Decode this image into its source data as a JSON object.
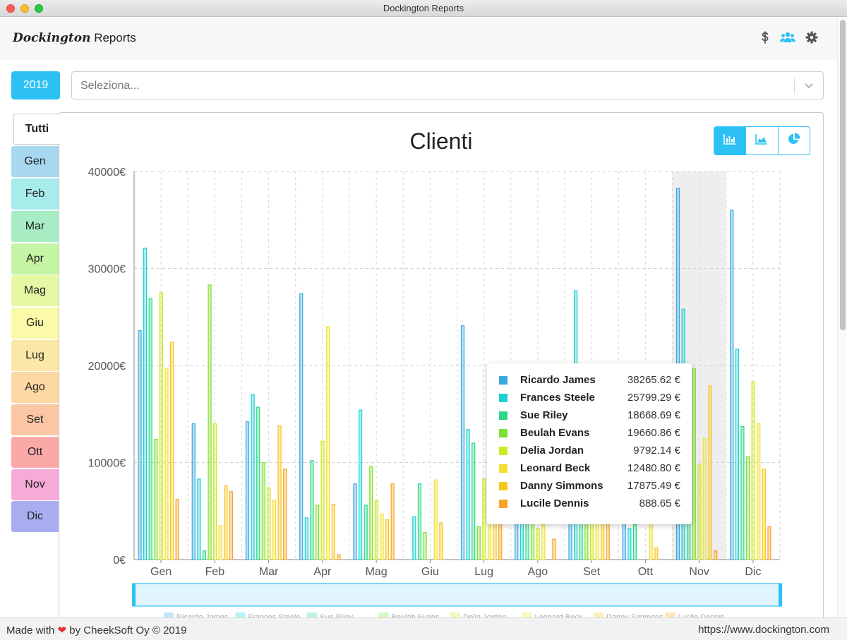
{
  "window": {
    "title": "Dockington Reports"
  },
  "header": {
    "brand_script": "Dockington",
    "brand_text": " Reports"
  },
  "filters": {
    "year": "2019",
    "select_placeholder": "Seleziona..."
  },
  "tabs": [
    {
      "label": "Tutti",
      "color": "#ffffff"
    },
    {
      "label": "Gen",
      "color": "#a8d8f0"
    },
    {
      "label": "Feb",
      "color": "#a6ecea"
    },
    {
      "label": "Mar",
      "color": "#a8ecc4"
    },
    {
      "label": "Apr",
      "color": "#c4f4a4"
    },
    {
      "label": "Mag",
      "color": "#e6f8a4"
    },
    {
      "label": "Giu",
      "color": "#fafaa8"
    },
    {
      "label": "Lug",
      "color": "#fbe8a6"
    },
    {
      "label": "Ago",
      "color": "#fbd8a4"
    },
    {
      "label": "Set",
      "color": "#fbc6a4"
    },
    {
      "label": "Ott",
      "color": "#f9aaa8"
    },
    {
      "label": "Nov",
      "color": "#f6aad8"
    },
    {
      "label": "Dic",
      "color": "#a8aef0"
    }
  ],
  "chart_data": {
    "type": "bar",
    "title": "Clienti",
    "categories": [
      "Gen",
      "Feb",
      "Mar",
      "Apr",
      "Mag",
      "Giu",
      "Lug",
      "Ago",
      "Set",
      "Ott",
      "Nov",
      "Dic"
    ],
    "y_ticks": [
      "0€",
      "10000€",
      "20000€",
      "30000€",
      "40000€"
    ],
    "ylim": [
      0,
      40000
    ],
    "grid": true,
    "legend": "bottom",
    "highlighted_category": "Nov",
    "series": [
      {
        "name": "Ricardo James",
        "color": "#3aa8e0",
        "values": [
          23600,
          14000,
          14200,
          27400,
          7800,
          0,
          24100,
          8200,
          6800,
          3900,
          38265.62,
          36000
        ]
      },
      {
        "name": "Frances Steele",
        "color": "#1cd0d4",
        "values": [
          32100,
          8300,
          17000,
          4300,
          15400,
          4400,
          13400,
          6900,
          27700,
          3200,
          25799.29,
          21700
        ]
      },
      {
        "name": "Sue Riley",
        "color": "#2ed888",
        "values": [
          26900,
          900,
          15700,
          10200,
          5600,
          7800,
          12000,
          4300,
          5200,
          3600,
          18668.69,
          13700
        ]
      },
      {
        "name": "Beulah Evans",
        "color": "#7ee030",
        "values": [
          12400,
          28300,
          10000,
          5600,
          9600,
          2800,
          3400,
          3800,
          4600,
          0,
          19660.86,
          10600
        ]
      },
      {
        "name": "Delia Jordan",
        "color": "#cdea22",
        "values": [
          27500,
          14000,
          7400,
          12200,
          6100,
          0,
          8300,
          3200,
          4100,
          0,
          9792.14,
          18300
        ]
      },
      {
        "name": "Leonard Beck",
        "color": "#f2e030",
        "values": [
          19700,
          3500,
          6100,
          24000,
          4700,
          8200,
          4400,
          3600,
          5000,
          4300,
          12480.8,
          14000
        ]
      },
      {
        "name": "Danny Simmons",
        "color": "#f8c61c",
        "values": [
          22400,
          7600,
          13800,
          5700,
          4100,
          3800,
          6300,
          0,
          4600,
          1200,
          17875.49,
          9300
        ]
      },
      {
        "name": "Lucile Dennis",
        "color": "#f8a424",
        "values": [
          6200,
          7000,
          9300,
          500,
          7800,
          0,
          5500,
          2100,
          5900,
          0,
          888.65,
          3400
        ]
      }
    ]
  },
  "tooltip": {
    "rows": [
      {
        "name": "Ricardo James",
        "value": "38265.62 €",
        "color": "#3aa8e0"
      },
      {
        "name": "Frances Steele",
        "value": "25799.29 €",
        "color": "#1cd0d4"
      },
      {
        "name": "Sue Riley",
        "value": "18668.69 €",
        "color": "#2ed888"
      },
      {
        "name": "Beulah Evans",
        "value": "19660.86 €",
        "color": "#7ee030"
      },
      {
        "name": "Delia Jordan",
        "value": "9792.14 €",
        "color": "#cdea22"
      },
      {
        "name": "Leonard Beck",
        "value": "12480.80 €",
        "color": "#f2e030"
      },
      {
        "name": "Danny Simmons",
        "value": "17875.49 €",
        "color": "#f8c61c"
      },
      {
        "name": "Lucile Dennis",
        "value": "888.65 €",
        "color": "#f8a424"
      }
    ]
  },
  "footer": {
    "made_with": "Made with",
    "by": "by CheekSoft Oy © 2019",
    "url": "https://www.dockington.com"
  },
  "icons": {
    "dollar": "dollar-icon",
    "users": "users-icon",
    "settings": "gear-icon"
  },
  "accent": "#2cc0f5"
}
